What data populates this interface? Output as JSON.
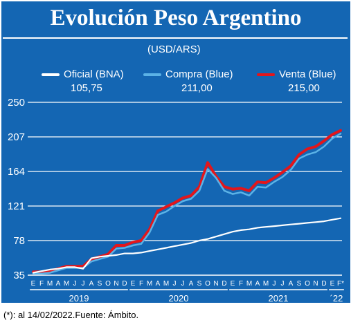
{
  "header": {
    "title": "Evolución Peso Argentino",
    "unit": "(USD/ARS)"
  },
  "legend": [
    {
      "label": "Oficial (BNA)",
      "value": "105,75",
      "color": "#ffffff"
    },
    {
      "label": "Compra (Blue)",
      "value": "211,00",
      "color": "#5bb2e6"
    },
    {
      "label": "Venta (Blue)",
      "value": "215,00",
      "color": "#e3161b"
    }
  ],
  "footer": "(*): al 14/02/2022.Fuente: Ámbito.",
  "chart_data": {
    "type": "line",
    "title": "Evolución Peso Argentino",
    "subtitle": "(USD/ARS)",
    "ylim": [
      35,
      250
    ],
    "yticks": [
      35,
      78,
      121,
      164,
      207,
      250
    ],
    "grid": true,
    "legend_position": "top",
    "x_month_labels": [
      "E",
      "F",
      "M",
      "A",
      "M",
      "J",
      "J",
      "A",
      "S",
      "O",
      "N",
      "D",
      "E",
      "F",
      "M",
      "A",
      "M",
      "J",
      "J",
      "A",
      "S",
      "O",
      "N",
      "D",
      "E",
      "F",
      "M",
      "A",
      "M",
      "J",
      "J",
      "A",
      "S",
      "O",
      "N",
      "D",
      "E",
      "F*"
    ],
    "x_year_labels": [
      "2019",
      "2020",
      "2021",
      "´22"
    ],
    "x_months_index": [
      0,
      1,
      2,
      3,
      4,
      5,
      6,
      7,
      8,
      9,
      10,
      11,
      12,
      13,
      14,
      15,
      16,
      17,
      18,
      19,
      20,
      21,
      22,
      23,
      24,
      25,
      26,
      27,
      28,
      29,
      30,
      31,
      32,
      33,
      34,
      35,
      36,
      37
    ],
    "series": [
      {
        "name": "Oficial (BNA)",
        "color": "#ffffff",
        "values": [
          38,
          40,
          42,
          43,
          45,
          45,
          43,
          56,
          58,
          59,
          60,
          62,
          62,
          63,
          65,
          67,
          69,
          71,
          73,
          75,
          78,
          80,
          83,
          86,
          89,
          91,
          92,
          94,
          95,
          96,
          97,
          98,
          99,
          100,
          101,
          102,
          104,
          105.75
        ]
      },
      {
        "name": "Compra (Blue)",
        "color": "#5bb2e6",
        "values": [
          37,
          37,
          38,
          41,
          44,
          44,
          44,
          52,
          55,
          58,
          68,
          69,
          72,
          74,
          88,
          110,
          114,
          121,
          127,
          130,
          140,
          167,
          156,
          140,
          136,
          138,
          134,
          145,
          144,
          151,
          157,
          166,
          180,
          185,
          188,
          195,
          205,
          211
        ]
      },
      {
        "name": "Venta (Blue)",
        "color": "#e3161b",
        "values": [
          39,
          39,
          40,
          43,
          46,
          46,
          46,
          55,
          58,
          61,
          72,
          72,
          76,
          78,
          92,
          115,
          120,
          125,
          131,
          134,
          145,
          175,
          158,
          145,
          142,
          143,
          140,
          151,
          150,
          156,
          163,
          171,
          185,
          192,
          195,
          202,
          210,
          215
        ]
      }
    ]
  }
}
